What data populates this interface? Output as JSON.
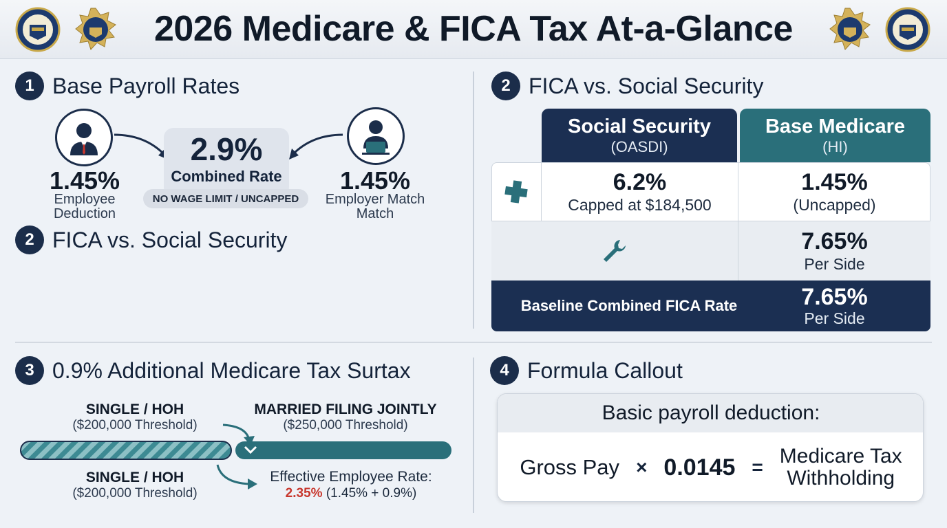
{
  "header": {
    "title": "2026 Medicare & FICA Tax At-a-Glance",
    "seal_icon": "treasury-seal-icon",
    "badge_icon": "eagle-badge-icon"
  },
  "section1": {
    "number": "1",
    "title": "Base Payroll Rates",
    "employee": {
      "pct": "1.45%",
      "label_line1": "Employee",
      "label_line2": "Deduction",
      "icon": "employee-avatar-icon"
    },
    "combined": {
      "pct": "2.9%",
      "label": "Combined Rate",
      "pill": "NO WAGE LIMIT / UNCAPPED"
    },
    "employer": {
      "pct": "1.45%",
      "label_line1": "Employer Match",
      "label_line2": "Match",
      "icon": "employer-laptop-icon"
    }
  },
  "section1b": {
    "number": "2",
    "title": "FICA vs. Social Security"
  },
  "section2": {
    "number": "2",
    "title": "FICA vs. Social Security",
    "colors": {
      "navy": "#1b2f52",
      "teal": "#2a6f7a"
    },
    "columns": [
      {
        "title": "Social Security",
        "sub": "(OASDI)"
      },
      {
        "title": "Base Medicare",
        "sub": "(HI)"
      }
    ],
    "row1": {
      "icon": "medical-cross-icon",
      "ss_value": "6.2%",
      "ss_note": "Capped at $184,500",
      "med_value": "1.45%",
      "med_note": "(Uncapped)"
    },
    "row2": {
      "icon": "wrench-icon",
      "value": "7.65%",
      "note": "Per Side"
    },
    "footer": {
      "label": "Baseline Combined FICA Rate",
      "value": "7.65%",
      "note": "Per Side"
    }
  },
  "section3": {
    "number": "3",
    "title": "0.9% Additional Medicare Tax Surtax",
    "top_left": {
      "title": "SINGLE / HOH",
      "sub": "($200,000 Threshold)"
    },
    "top_right": {
      "title": "MARRIED FILING JOINTLY",
      "sub": "($250,000 Threshold)"
    },
    "bottom_left": {
      "title": "SINGLE / HOH",
      "sub": "($200,000 Threshold)"
    },
    "effective": {
      "label": "Effective Employee Rate:",
      "rate": "2.35%",
      "breakdown": "(1.45% + 0.9%)"
    },
    "colors": {
      "teal": "#2a6f7a",
      "red": "#c8372d"
    }
  },
  "section4": {
    "number": "4",
    "title": "Formula Callout",
    "card_title": "Basic payroll deduction:",
    "term1": "Gross Pay",
    "op1": "×",
    "term2": "0.0145",
    "op2": "=",
    "result_line1": "Medicare Tax",
    "result_line2": "Withholding"
  }
}
